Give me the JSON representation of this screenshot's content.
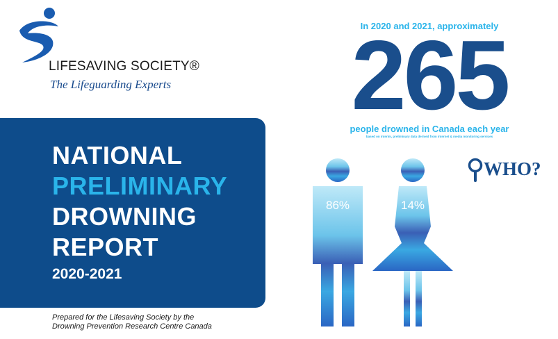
{
  "logo": {
    "name": "LIFESAVING SOCIETY®",
    "tagline": "The Lifeguarding Experts"
  },
  "title": {
    "line1": "NATIONAL",
    "line2": "PRELIMINARY",
    "line3": "DROWNING",
    "line4": "REPORT",
    "years": "2020-2021"
  },
  "prepared_by": {
    "line1": "Prepared for the Lifesaving Society by the",
    "line2": "Drowning Prevention Research Centre Canada"
  },
  "stat": {
    "intro": "In 2020 and 2021, approximately",
    "number": "265",
    "caption": "people drowned in Canada each year",
    "note": "based on interim, preliminary data derived from internet & media monitoring services"
  },
  "who": {
    "label": "WHO?",
    "icon": "magnifier-icon"
  },
  "gender": {
    "male_pct": "86%",
    "female_pct": "14%"
  },
  "colors": {
    "brand_blue": "#0e4c8b",
    "accent_cyan": "#2ab4ea",
    "number_blue": "#1a4e8c"
  }
}
